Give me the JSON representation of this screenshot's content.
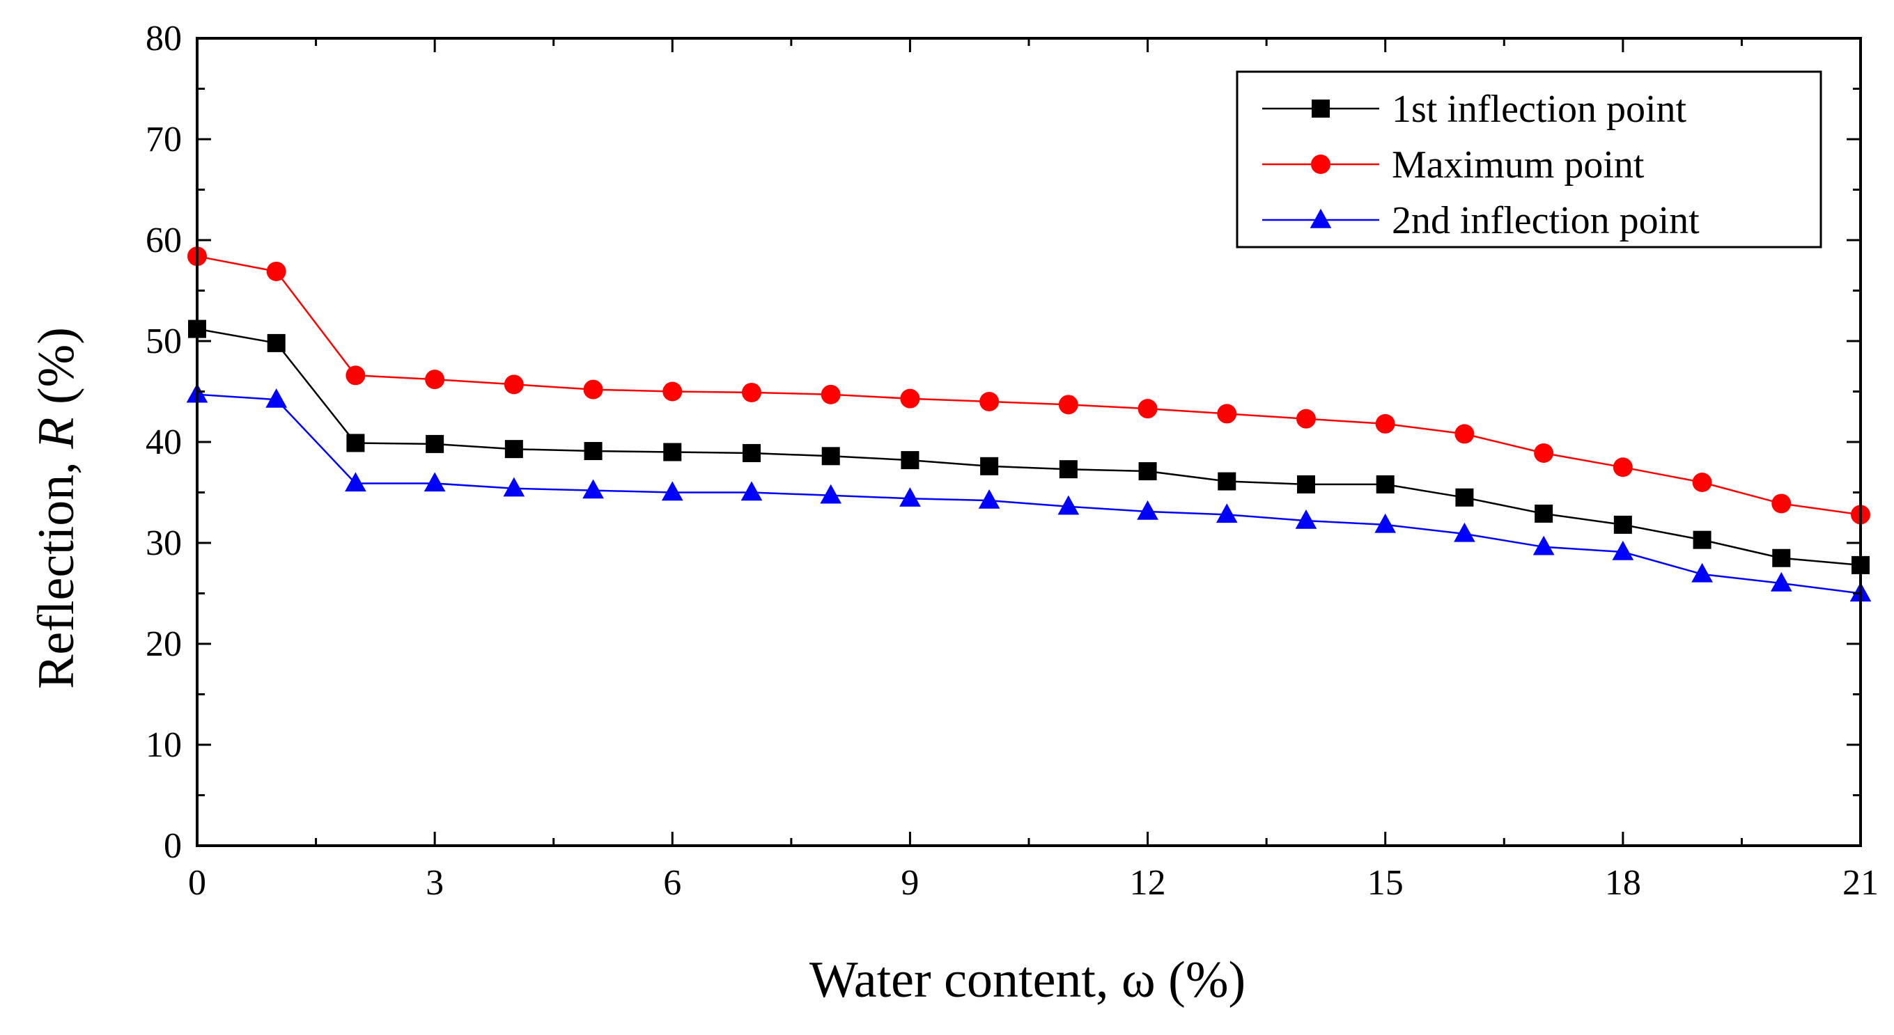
{
  "chart_data": {
    "type": "line",
    "title": "",
    "xlabel": "Water content, ω (%)",
    "ylabel": "Reflection, R (%)",
    "ylabel_prefix": "Reflection, ",
    "ylabel_var": "R",
    "ylabel_suffix": " (%)",
    "xlim": [
      0,
      21
    ],
    "ylim": [
      0,
      80
    ],
    "xticks": [
      0,
      3,
      6,
      9,
      12,
      15,
      18,
      21
    ],
    "xtick_labels": [
      "0",
      "3",
      "6",
      "9",
      "12",
      "15",
      "18",
      "21"
    ],
    "yticks": [
      0,
      10,
      20,
      30,
      40,
      50,
      60,
      70,
      80
    ],
    "ytick_labels": [
      "0",
      "10",
      "20",
      "30",
      "40",
      "50",
      "60",
      "70",
      "80"
    ],
    "grid": false,
    "legend_position": "top-right",
    "x": [
      0,
      1,
      2,
      3,
      4,
      5,
      6,
      7,
      8,
      9,
      10,
      11,
      12,
      13,
      14,
      15,
      16,
      17,
      18,
      19,
      20,
      21
    ],
    "series": [
      {
        "name": "1st inflection point",
        "color": "#000000",
        "marker": "square",
        "values": [
          51.2,
          49.8,
          39.9,
          39.8,
          39.3,
          39.1,
          39.0,
          38.9,
          38.6,
          38.2,
          37.6,
          37.3,
          37.1,
          36.1,
          35.8,
          35.8,
          34.5,
          32.9,
          31.8,
          30.3,
          28.5,
          27.8
        ]
      },
      {
        "name": "Maximum point",
        "color": "#ff0000",
        "marker": "circle",
        "values": [
          58.4,
          56.9,
          46.6,
          46.2,
          45.7,
          45.2,
          45.0,
          44.9,
          44.7,
          44.3,
          44.0,
          43.7,
          43.3,
          42.8,
          42.3,
          41.8,
          40.8,
          38.9,
          37.5,
          36.0,
          33.9,
          32.8
        ]
      },
      {
        "name": "2nd inflection point",
        "color": "#0000ff",
        "marker": "triangle",
        "values": [
          44.7,
          44.2,
          35.9,
          35.9,
          35.4,
          35.2,
          35.0,
          35.0,
          34.7,
          34.4,
          34.2,
          33.6,
          33.1,
          32.8,
          32.2,
          31.8,
          30.9,
          29.6,
          29.1,
          26.9,
          26.0,
          25.0
        ]
      }
    ]
  }
}
